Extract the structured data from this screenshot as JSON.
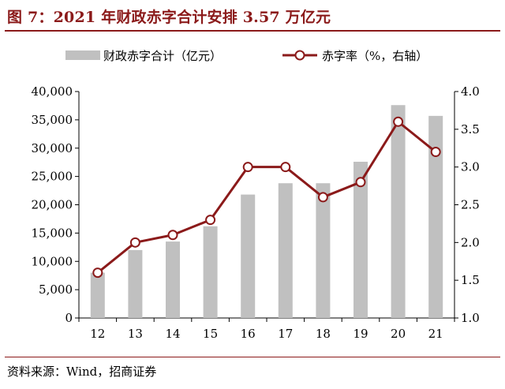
{
  "title": "图 7：2021 年财政赤字合计安排 3.57 万亿元",
  "source": "资料来源：Wind，招商证券",
  "colors": {
    "bar": "#c0c0c0",
    "line": "#8b1a1a",
    "accent": "#8b1a1a",
    "marker_fill": "#ffffff"
  },
  "chart_data": {
    "type": "bar+line",
    "categories": [
      "12",
      "13",
      "14",
      "15",
      "16",
      "17",
      "18",
      "19",
      "20",
      "21"
    ],
    "series": [
      {
        "name": "财政赤字合计（亿元）",
        "type": "bar",
        "axis": "left",
        "values": [
          8000,
          12000,
          13500,
          16200,
          21800,
          23800,
          23800,
          27600,
          37600,
          35700
        ]
      },
      {
        "name": "赤字率（%，右轴）",
        "type": "line",
        "axis": "right",
        "values": [
          1.6,
          2.0,
          2.1,
          2.3,
          3.0,
          3.0,
          2.6,
          2.8,
          3.6,
          3.2
        ]
      }
    ],
    "y_left": {
      "min": 0,
      "max": 40000,
      "ticks": [
        "0",
        "5,000",
        "10,000",
        "15,000",
        "20,000",
        "25,000",
        "30,000",
        "35,000",
        "40,000"
      ]
    },
    "y_right": {
      "min": 1.0,
      "max": 4.0,
      "ticks": [
        "1.0",
        "1.5",
        "2.0",
        "2.5",
        "3.0",
        "3.5",
        "4.0"
      ]
    },
    "grid": false,
    "legend_position": "top"
  }
}
